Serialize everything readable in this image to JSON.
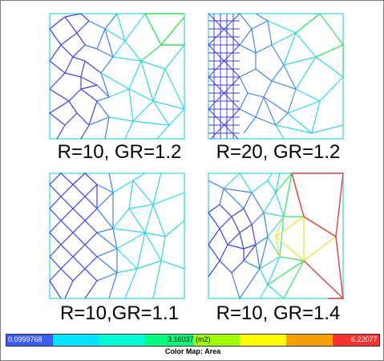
{
  "panels": [
    {
      "id": "r10-gr12",
      "caption": "R=10, GR=1.2"
    },
    {
      "id": "r20-gr12",
      "caption": "R=20, GR=1.2"
    },
    {
      "id": "r10-gr11",
      "caption": "R=10,GR=1.1"
    },
    {
      "id": "r10-gr14",
      "caption": "R=10, GR=1.4"
    }
  ],
  "legend": {
    "min_label": "0.0999768",
    "mid_label": "3.16037 (m2)",
    "max_label": "6.22077",
    "title": "Color Map: Area",
    "colors": [
      "#3a5bff",
      "#00e5ff",
      "#00ffd0",
      "#00ff80",
      "#a0ff00",
      "#ffff00",
      "#ffa000",
      "#ff3030"
    ]
  },
  "mesh_colors": {
    "dense": "#4040dd",
    "fine": "#3f7fe6",
    "medium": "#2fd7e0",
    "coarse": "#3fe6a0",
    "large": "#3fe060",
    "larger": "#e6e64a",
    "largest": "#e04040"
  }
}
